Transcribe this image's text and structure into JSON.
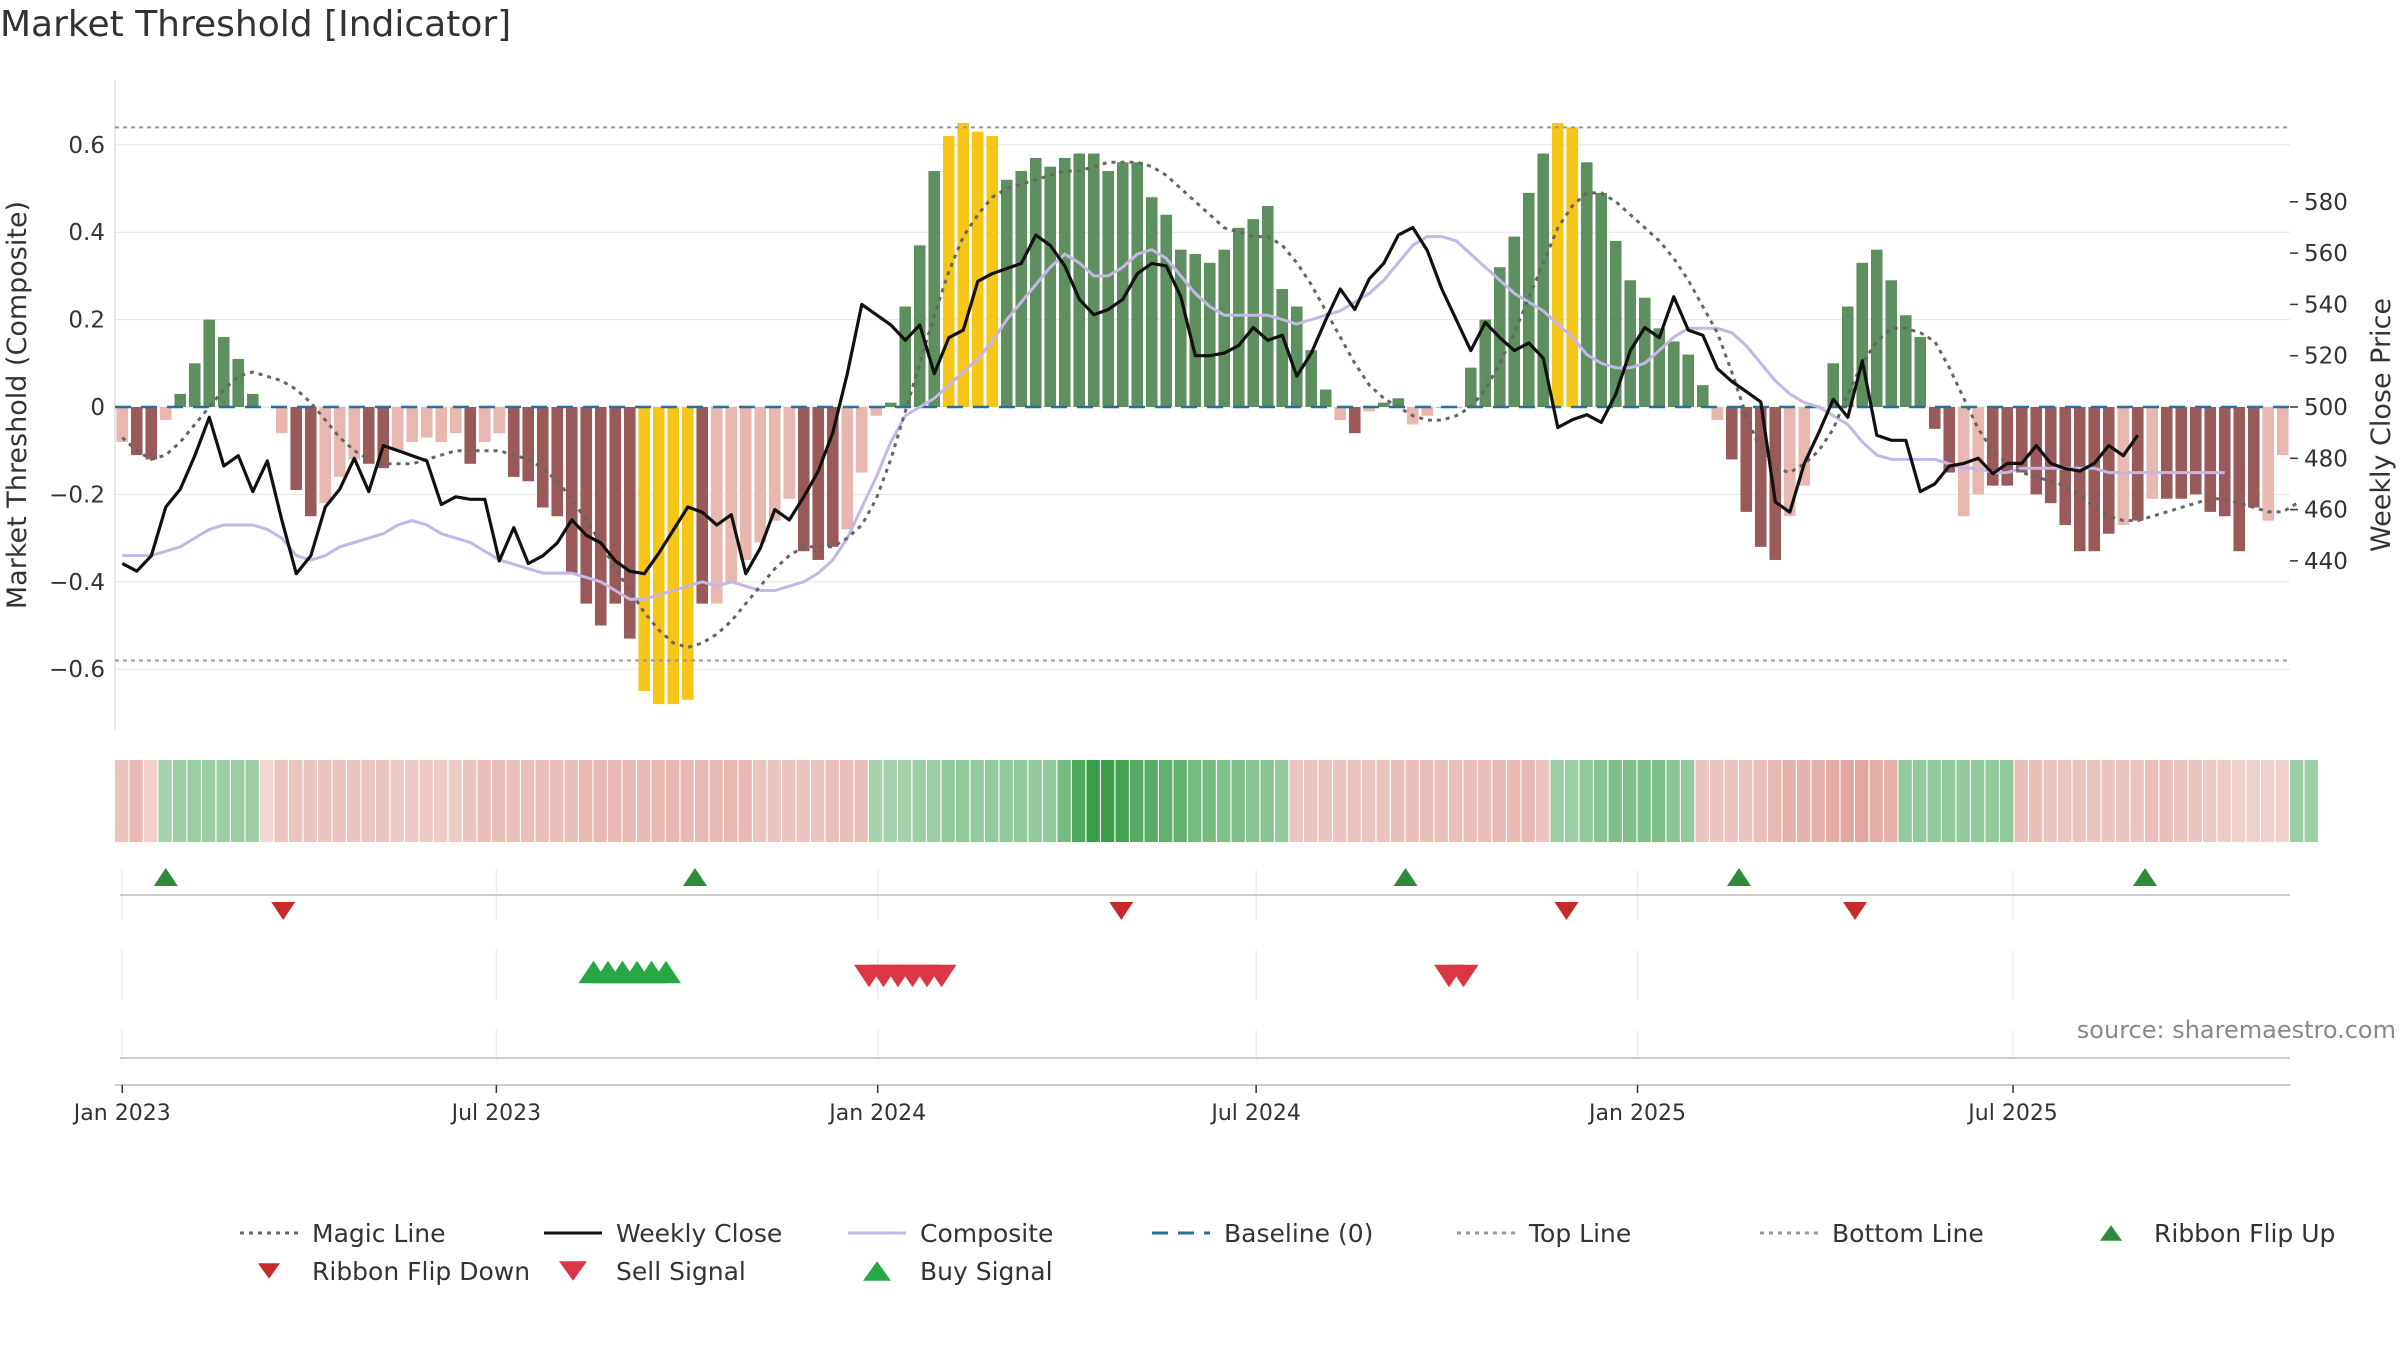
{
  "chart_title": "Market Threshold [Indicator]",
  "source_note": "source: sharemaestro.com",
  "chart_data": {
    "type": "bar",
    "title": "Market Threshold [Indicator]",
    "ylabel": "Market Threshold (Composite)",
    "y2label": "Weekly Close Price",
    "ylim": [
      -0.72,
      0.75
    ],
    "y2lim": [
      423,
      583
    ],
    "yticks": [
      -0.6,
      -0.4,
      -0.2,
      0,
      0.2,
      0.4,
      0.6
    ],
    "ytick_labels": [
      "−0.6",
      "−0.4",
      "−0.2",
      "0",
      "0.2",
      "0.4",
      "0.6"
    ],
    "y2ticks": [
      440,
      460,
      480,
      500,
      520,
      540,
      560,
      580
    ],
    "y2tick_labels": [
      "440",
      "460",
      "480",
      "500",
      "520",
      "540",
      "560",
      "580"
    ],
    "xtick_labels": [
      "Jan 2023",
      "Jul 2023",
      "Jan 2024",
      "Jul 2024",
      "Jan 2025",
      "Jul 2025"
    ],
    "xtick_weeks": [
      0.5,
      26.3,
      52.6,
      78.7,
      105,
      130.9
    ],
    "top_line": 0.64,
    "bottom_line": -0.58,
    "grid": true,
    "legend_position": "bottom",
    "composite_bars": [
      -0.08,
      -0.11,
      -0.12,
      -0.03,
      0.03,
      0.1,
      0.2,
      0.16,
      0.11,
      0.03,
      0.0,
      -0.06,
      -0.19,
      -0.25,
      -0.22,
      -0.16,
      -0.12,
      -0.13,
      -0.14,
      -0.1,
      -0.08,
      -0.07,
      -0.08,
      -0.06,
      -0.13,
      -0.08,
      -0.06,
      -0.16,
      -0.17,
      -0.23,
      -0.25,
      -0.38,
      -0.45,
      -0.5,
      -0.45,
      -0.53,
      -0.65,
      -0.68,
      -0.68,
      -0.67,
      -0.45,
      -0.45,
      -0.4,
      -0.35,
      -0.31,
      -0.26,
      -0.21,
      -0.33,
      -0.35,
      -0.32,
      -0.28,
      -0.15,
      -0.02,
      0.01,
      0.23,
      0.37,
      0.54,
      0.62,
      0.65,
      0.63,
      0.62,
      0.52,
      0.54,
      0.57,
      0.55,
      0.57,
      0.58,
      0.58,
      0.54,
      0.56,
      0.56,
      0.48,
      0.44,
      0.36,
      0.35,
      0.33,
      0.36,
      0.41,
      0.43,
      0.46,
      0.27,
      0.23,
      0.13,
      0.04,
      -0.03,
      -0.06,
      -0.01,
      0.01,
      0.02,
      -0.04,
      -0.02,
      0.0,
      0.0,
      0.09,
      0.2,
      0.32,
      0.39,
      0.49,
      0.58,
      0.65,
      0.64,
      0.56,
      0.49,
      0.38,
      0.29,
      0.25,
      0.18,
      0.15,
      0.12,
      0.05,
      -0.03,
      -0.12,
      -0.24,
      -0.32,
      -0.35,
      -0.25,
      -0.18,
      0.0,
      0.1,
      0.23,
      0.33,
      0.36,
      0.29,
      0.21,
      0.16,
      -0.05,
      -0.15,
      -0.25,
      -0.2,
      -0.18,
      -0.18,
      -0.15,
      -0.2,
      -0.22,
      -0.27,
      -0.33,
      -0.33,
      -0.29,
      -0.27,
      -0.26,
      -0.21,
      -0.21,
      -0.21,
      -0.2,
      -0.24,
      -0.25,
      -0.33,
      -0.23,
      -0.26,
      -0.11
    ],
    "bar_colors": [
      "L",
      "R",
      "R",
      "L",
      "G",
      "G",
      "G",
      "G",
      "G",
      "G",
      "L",
      "L",
      "R",
      "R",
      "L",
      "L",
      "L",
      "R",
      "R",
      "L",
      "L",
      "L",
      "L",
      "L",
      "R",
      "L",
      "L",
      "R",
      "R",
      "R",
      "R",
      "R",
      "R",
      "R",
      "R",
      "R",
      "Y",
      "Y",
      "Y",
      "Y",
      "R",
      "L",
      "L",
      "L",
      "L",
      "L",
      "L",
      "R",
      "R",
      "R",
      "L",
      "L",
      "L",
      "G",
      "G",
      "G",
      "G",
      "Y",
      "Y",
      "Y",
      "Y",
      "G",
      "G",
      "G",
      "G",
      "G",
      "G",
      "G",
      "G",
      "G",
      "G",
      "G",
      "G",
      "G",
      "G",
      "G",
      "G",
      "G",
      "G",
      "G",
      "G",
      "G",
      "G",
      "G",
      "L",
      "R",
      "L",
      "G",
      "G",
      "L",
      "L",
      "G",
      "G",
      "G",
      "G",
      "G",
      "G",
      "G",
      "G",
      "Y",
      "Y",
      "G",
      "G",
      "G",
      "G",
      "G",
      "G",
      "G",
      "G",
      "G",
      "L",
      "R",
      "R",
      "R",
      "R",
      "L",
      "L",
      "G",
      "G",
      "G",
      "G",
      "G",
      "G",
      "G",
      "G",
      "R",
      "R",
      "L",
      "L",
      "R",
      "R",
      "R",
      "R",
      "R",
      "R",
      "R",
      "R",
      "R",
      "L",
      "R",
      "L",
      "R",
      "R",
      "R",
      "R",
      "R",
      "R",
      "R",
      "L",
      "L"
    ],
    "weekly_close": [
      439,
      436,
      442,
      461,
      468,
      481,
      496,
      477,
      481,
      467,
      479,
      456,
      435,
      442,
      461,
      468,
      480,
      467,
      485,
      483,
      481,
      479,
      462,
      465,
      464,
      464,
      440,
      453,
      439,
      442,
      447,
      456,
      450,
      447,
      440,
      436,
      435,
      443,
      452,
      461,
      459,
      454,
      458,
      435,
      445,
      460,
      456,
      465,
      475,
      490,
      513,
      540,
      536,
      532,
      526,
      532,
      513,
      527,
      530,
      549,
      552,
      554,
      556,
      567,
      563,
      555,
      542,
      536,
      538,
      542,
      552,
      556,
      555,
      543,
      520,
      520,
      521,
      524,
      531,
      526,
      528,
      512,
      521,
      534,
      546,
      538,
      550,
      556,
      567,
      570,
      561,
      546,
      534,
      522,
      533,
      527,
      522,
      525,
      519,
      492,
      495,
      497,
      494,
      505,
      522,
      531,
      527,
      543,
      530,
      528,
      515,
      510,
      506,
      502,
      463,
      459,
      478,
      490,
      503,
      496,
      518,
      489,
      487,
      487,
      467,
      470,
      477,
      478,
      480,
      474,
      478,
      478,
      485,
      478,
      476,
      475,
      478,
      485,
      481,
      489
    ],
    "magic_line": [
      -0.07,
      -0.1,
      -0.12,
      -0.11,
      -0.08,
      -0.04,
      0.0,
      0.04,
      0.07,
      0.08,
      0.07,
      0.06,
      0.04,
      0.01,
      -0.03,
      -0.07,
      -0.1,
      -0.12,
      -0.13,
      -0.13,
      -0.13,
      -0.12,
      -0.11,
      -0.1,
      -0.1,
      -0.1,
      -0.1,
      -0.11,
      -0.12,
      -0.14,
      -0.17,
      -0.21,
      -0.26,
      -0.31,
      -0.37,
      -0.42,
      -0.47,
      -0.51,
      -0.54,
      -0.55,
      -0.54,
      -0.52,
      -0.49,
      -0.45,
      -0.41,
      -0.37,
      -0.34,
      -0.32,
      -0.32,
      -0.32,
      -0.3,
      -0.27,
      -0.21,
      -0.12,
      -0.01,
      0.1,
      0.21,
      0.31,
      0.39,
      0.44,
      0.48,
      0.5,
      0.51,
      0.52,
      0.53,
      0.54,
      0.54,
      0.55,
      0.56,
      0.56,
      0.56,
      0.55,
      0.53,
      0.5,
      0.47,
      0.44,
      0.41,
      0.4,
      0.39,
      0.39,
      0.37,
      0.33,
      0.28,
      0.22,
      0.16,
      0.1,
      0.05,
      0.02,
      0.0,
      -0.02,
      -0.03,
      -0.03,
      -0.02,
      0.0,
      0.04,
      0.1,
      0.17,
      0.25,
      0.33,
      0.41,
      0.46,
      0.49,
      0.49,
      0.47,
      0.44,
      0.41,
      0.38,
      0.34,
      0.29,
      0.23,
      0.17,
      0.08,
      -0.02,
      -0.1,
      -0.14,
      -0.15,
      -0.13,
      -0.1,
      -0.05,
      0.03,
      0.1,
      0.15,
      0.18,
      0.18,
      0.17,
      0.15,
      0.09,
      0.02,
      -0.05,
      -0.1,
      -0.13,
      -0.15,
      -0.16,
      -0.17,
      -0.18,
      -0.2,
      -0.23,
      -0.25,
      -0.26,
      -0.26,
      -0.25,
      -0.24,
      -0.23,
      -0.22,
      -0.21,
      -0.21,
      -0.22,
      -0.23,
      -0.24,
      -0.24,
      -0.22
    ],
    "composite_line": [
      -0.34,
      -0.34,
      -0.34,
      -0.33,
      -0.32,
      -0.3,
      -0.28,
      -0.27,
      -0.27,
      -0.27,
      -0.28,
      -0.3,
      -0.34,
      -0.35,
      -0.34,
      -0.32,
      -0.31,
      -0.3,
      -0.29,
      -0.27,
      -0.26,
      -0.27,
      -0.29,
      -0.3,
      -0.31,
      -0.33,
      -0.35,
      -0.36,
      -0.37,
      -0.38,
      -0.38,
      -0.38,
      -0.39,
      -0.4,
      -0.42,
      -0.44,
      -0.44,
      -0.43,
      -0.42,
      -0.41,
      -0.4,
      -0.41,
      -0.4,
      -0.41,
      -0.42,
      -0.42,
      -0.41,
      -0.4,
      -0.38,
      -0.35,
      -0.3,
      -0.23,
      -0.16,
      -0.08,
      -0.02,
      0.0,
      0.02,
      0.05,
      0.08,
      0.11,
      0.15,
      0.2,
      0.24,
      0.28,
      0.32,
      0.35,
      0.33,
      0.3,
      0.3,
      0.32,
      0.35,
      0.36,
      0.34,
      0.3,
      0.26,
      0.23,
      0.21,
      0.21,
      0.21,
      0.21,
      0.2,
      0.19,
      0.2,
      0.21,
      0.22,
      0.24,
      0.26,
      0.29,
      0.33,
      0.37,
      0.39,
      0.39,
      0.38,
      0.35,
      0.32,
      0.29,
      0.26,
      0.24,
      0.22,
      0.19,
      0.16,
      0.12,
      0.1,
      0.09,
      0.09,
      0.1,
      0.13,
      0.16,
      0.18,
      0.18,
      0.18,
      0.17,
      0.14,
      0.1,
      0.06,
      0.03,
      0.01,
      0.0,
      -0.02,
      -0.04,
      -0.08,
      -0.11,
      -0.12,
      -0.12,
      -0.12,
      -0.12,
      -0.13,
      -0.14,
      -0.14,
      -0.15,
      -0.15,
      -0.14,
      -0.14,
      -0.14,
      -0.14,
      -0.14,
      -0.14,
      -0.15,
      -0.15,
      -0.15,
      -0.15,
      -0.15,
      -0.15,
      -0.15,
      -0.15,
      -0.15
    ],
    "ribbon_values": [
      -0.3,
      -0.4,
      -0.2,
      0.25,
      0.3,
      0.3,
      0.3,
      0.3,
      0.3,
      0.3,
      -0.15,
      -0.3,
      -0.3,
      -0.3,
      -0.3,
      -0.3,
      -0.3,
      -0.3,
      -0.3,
      -0.25,
      -0.25,
      -0.25,
      -0.25,
      -0.25,
      -0.3,
      -0.35,
      -0.35,
      -0.35,
      -0.35,
      -0.35,
      -0.35,
      -0.35,
      -0.4,
      -0.4,
      -0.4,
      -0.4,
      -0.4,
      -0.4,
      -0.4,
      -0.4,
      -0.4,
      -0.4,
      -0.4,
      -0.4,
      -0.3,
      -0.3,
      -0.3,
      -0.3,
      -0.3,
      -0.35,
      -0.35,
      -0.35,
      0.25,
      0.25,
      0.25,
      0.3,
      0.3,
      0.35,
      0.35,
      0.35,
      0.35,
      0.35,
      0.35,
      0.35,
      0.35,
      0.5,
      0.7,
      0.8,
      0.8,
      0.75,
      0.65,
      0.65,
      0.6,
      0.6,
      0.5,
      0.5,
      0.45,
      0.45,
      0.4,
      0.4,
      0.35,
      -0.3,
      -0.3,
      -0.3,
      -0.3,
      -0.3,
      -0.3,
      -0.3,
      -0.35,
      -0.35,
      -0.35,
      -0.35,
      -0.35,
      -0.35,
      -0.35,
      -0.4,
      -0.4,
      -0.4,
      -0.3,
      0.3,
      0.3,
      0.35,
      0.4,
      0.45,
      0.45,
      0.45,
      0.45,
      0.4,
      0.35,
      -0.3,
      -0.3,
      -0.3,
      -0.3,
      -0.35,
      -0.4,
      -0.45,
      -0.45,
      -0.45,
      -0.5,
      -0.55,
      -0.55,
      -0.5,
      -0.45,
      0.35,
      0.35,
      0.35,
      0.35,
      0.35,
      0.35,
      0.35,
      0.35,
      -0.35,
      -0.35,
      -0.3,
      -0.3,
      -0.3,
      -0.3,
      -0.3,
      -0.3,
      -0.3,
      -0.35,
      -0.35,
      -0.3,
      -0.3,
      -0.25,
      -0.25,
      -0.2,
      -0.2,
      -0.2,
      -0.2,
      0.3,
      0.3
    ],
    "ribbon_flip_up": [
      3.5,
      40,
      89,
      112,
      140
    ],
    "ribbon_flip_down": [
      11.6,
      69.4,
      100.1,
      120
    ],
    "buy_signals": [
      33,
      34,
      35,
      36,
      37,
      38
    ],
    "sell_signals": [
      52,
      53,
      54,
      55,
      56,
      57,
      92,
      93
    ]
  },
  "legend": [
    {
      "label": "Magic Line",
      "style": "dotted-line",
      "color": "#666666"
    },
    {
      "label": "Weekly Close",
      "style": "solid-line",
      "color": "#111111"
    },
    {
      "label": "Composite",
      "style": "solid-line",
      "color": "#c4b6e6"
    },
    {
      "label": "Baseline (0)",
      "style": "dashed-line",
      "color": "#2a6f97"
    },
    {
      "label": "Top Line",
      "style": "dotted-line",
      "color": "#999999"
    },
    {
      "label": "Bottom Line",
      "style": "dotted-line",
      "color": "#999999"
    },
    {
      "label": "Ribbon Flip Up",
      "style": "triangle-up",
      "color": "#2e8b3a"
    },
    {
      "label": "Ribbon Flip Down",
      "style": "triangle-down",
      "color": "#c62a2a"
    },
    {
      "label": "Sell Signal",
      "style": "triangle-down",
      "color": "#dc3545"
    },
    {
      "label": "Buy Signal",
      "style": "triangle-up",
      "color": "#28a745"
    }
  ],
  "colors": {
    "bar_green": "#5e8f5e",
    "bar_light_green": "#a8d4a3",
    "bar_red": "#9a5a5a",
    "bar_light_red": "#e8b8b0",
    "bar_yellow": "#f5c518",
    "ribbon_green": "#3a9e4a",
    "ribbon_red": "#d98a80"
  }
}
